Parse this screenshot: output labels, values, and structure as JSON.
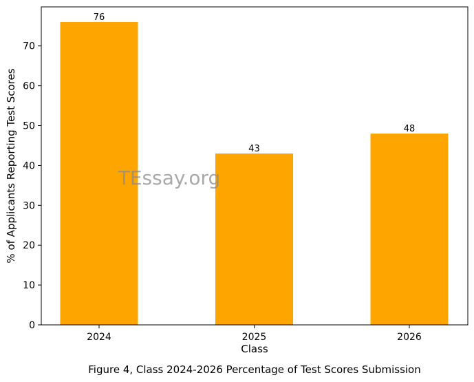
{
  "chart_data": {
    "type": "bar",
    "categories": [
      "2024",
      "2025",
      "2026"
    ],
    "values": [
      76,
      43,
      48
    ],
    "data_labels": [
      "76",
      "43",
      "48"
    ],
    "xlabel": "Class",
    "ylabel": "% of Applicants Reporting Test Scores",
    "ylim": [
      0,
      79.8
    ],
    "yticks": [
      0,
      10,
      20,
      30,
      40,
      50,
      60,
      70
    ],
    "grid": false,
    "bar_color": "#ffa500",
    "caption": "Figure 4, Class 2024-2026 Percentage of Test Scores Submission"
  },
  "watermark": "TEssay.org"
}
